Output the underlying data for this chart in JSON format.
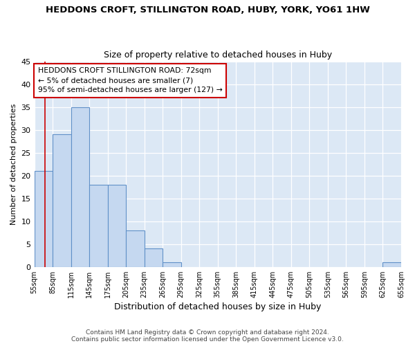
{
  "title": "HEDDONS CROFT, STILLINGTON ROAD, HUBY, YORK, YO61 1HW",
  "subtitle": "Size of property relative to detached houses in Huby",
  "xlabel": "Distribution of detached houses by size in Huby",
  "ylabel": "Number of detached properties",
  "bar_color": "#c5d8f0",
  "bar_edge_color": "#6090c8",
  "background_color": "#dce8f5",
  "fig_background": "#ffffff",
  "bins_left_edges": [
    55,
    85,
    115,
    145,
    175,
    205,
    235,
    265,
    295,
    325,
    355,
    385,
    415,
    445,
    475,
    505,
    535,
    565,
    595,
    625
  ],
  "bin_width": 30,
  "bar_heights": [
    21,
    29,
    35,
    18,
    18,
    8,
    4,
    1,
    0,
    0,
    0,
    0,
    0,
    0,
    0,
    0,
    0,
    0,
    0,
    1
  ],
  "ylim": [
    0,
    45
  ],
  "yticks": [
    0,
    5,
    10,
    15,
    20,
    25,
    30,
    35,
    40,
    45
  ],
  "property_size": 72,
  "annotation_line1": "HEDDONS CROFT STILLINGTON ROAD: 72sqm",
  "annotation_line2": "← 5% of detached houses are smaller (7)",
  "annotation_line3": "95% of semi-detached houses are larger (127) →",
  "annotation_box_color": "#ffffff",
  "annotation_box_edge_color": "#cc0000",
  "red_line_color": "#cc0000",
  "footer_text": "Contains HM Land Registry data © Crown copyright and database right 2024.\nContains public sector information licensed under the Open Government Licence v3.0.",
  "xtick_labels": [
    "55sqm",
    "85sqm",
    "115sqm",
    "145sqm",
    "175sqm",
    "205sqm",
    "235sqm",
    "265sqm",
    "295sqm",
    "325sqm",
    "355sqm",
    "385sqm",
    "415sqm",
    "445sqm",
    "475sqm",
    "505sqm",
    "535sqm",
    "565sqm",
    "595sqm",
    "625sqm",
    "655sqm"
  ]
}
